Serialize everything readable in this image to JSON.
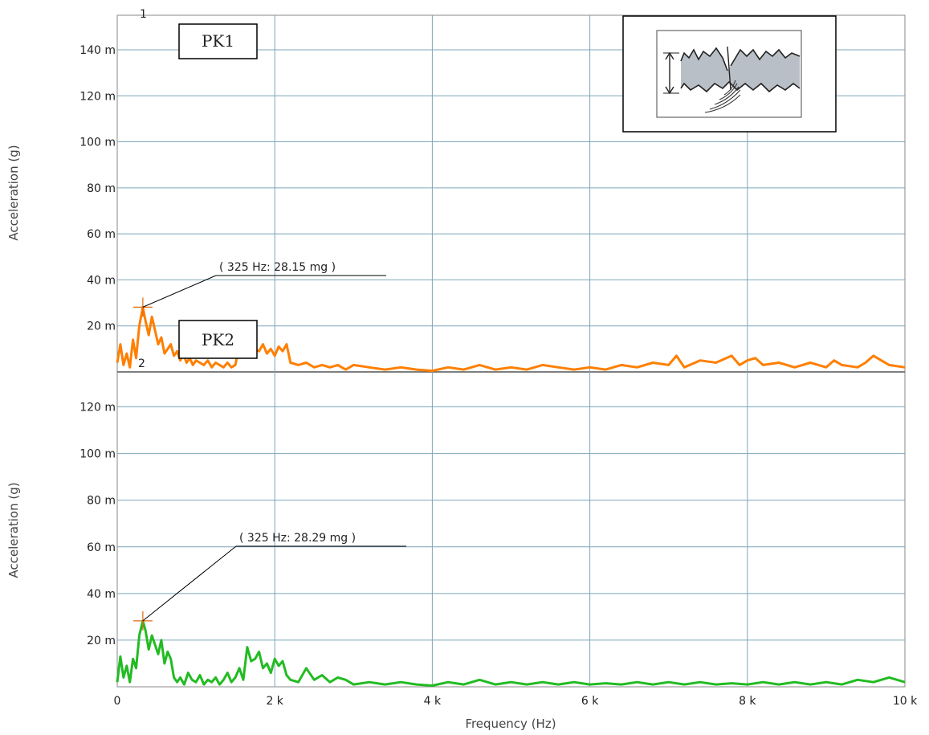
{
  "chart_data": [
    {
      "type": "line",
      "plot_number": "1",
      "box_label": "PK1",
      "ylabel": "Acceleration (g)",
      "xlabel": "",
      "xlim": [
        0,
        10000
      ],
      "ylim": [
        0,
        155
      ],
      "grid": true,
      "y_ticks": [
        20,
        40,
        60,
        80,
        100,
        120,
        140
      ],
      "y_tick_labels": [
        "20 m",
        "40 m",
        "60 m",
        "80 m",
        "100 m",
        "120 m",
        "140 m"
      ],
      "x_ticks": [
        0,
        2000,
        4000,
        6000,
        8000,
        10000
      ],
      "series": [
        {
          "color": "#ff7f00",
          "x": [
            0,
            40,
            80,
            120,
            160,
            200,
            240,
            280,
            325,
            360,
            400,
            440,
            480,
            520,
            560,
            600,
            640,
            680,
            720,
            760,
            800,
            840,
            880,
            920,
            960,
            1000,
            1050,
            1100,
            1150,
            1200,
            1250,
            1300,
            1350,
            1400,
            1450,
            1500,
            1550,
            1600,
            1650,
            1700,
            1750,
            1800,
            1850,
            1900,
            1950,
            2000,
            2050,
            2100,
            2150,
            2200,
            2300,
            2400,
            2500,
            2600,
            2700,
            2800,
            2900,
            3000,
            3200,
            3400,
            3600,
            3800,
            4000,
            4200,
            4400,
            4600,
            4800,
            5000,
            5200,
            5400,
            5600,
            5800,
            6000,
            6200,
            6400,
            6600,
            6800,
            7000,
            7100,
            7200,
            7400,
            7600,
            7800,
            7900,
            8000,
            8100,
            8200,
            8400,
            8600,
            8800,
            9000,
            9100,
            9200,
            9400,
            9500,
            9600,
            9700,
            9800,
            10000
          ],
          "y": [
            4,
            12,
            3,
            8,
            2,
            14,
            6,
            20,
            28.15,
            22,
            16,
            24,
            18,
            12,
            15,
            8,
            10,
            12,
            7,
            9,
            5,
            8,
            4,
            6,
            3,
            5,
            4,
            3,
            5,
            2,
            4,
            3,
            2,
            4,
            2,
            3,
            12,
            8,
            9,
            13,
            10,
            9,
            12,
            8,
            10,
            7,
            11,
            9,
            12,
            4,
            3,
            4,
            2,
            3,
            2,
            3,
            1,
            3,
            2,
            1,
            2,
            1,
            0.5,
            2,
            1,
            3,
            1,
            2,
            1,
            3,
            2,
            1,
            2,
            1,
            3,
            2,
            4,
            3,
            7,
            2,
            5,
            4,
            7,
            3,
            5,
            6,
            3,
            4,
            2,
            4,
            2,
            5,
            3,
            2,
            4,
            7,
            5,
            3,
            2
          ]
        }
      ],
      "annotation": {
        "x": 325,
        "y": 28.15,
        "text": "( 325 Hz:  28.15 mg )"
      }
    },
    {
      "type": "line",
      "plot_number": "2",
      "box_label": "PK2",
      "ylabel": "Acceleration (g)",
      "xlabel": "Frequency (Hz)",
      "xlim": [
        0,
        10000
      ],
      "ylim": [
        0,
        135
      ],
      "grid": true,
      "y_ticks": [
        20,
        40,
        60,
        80,
        100,
        120
      ],
      "y_tick_labels": [
        "20 m",
        "40 m",
        "60 m",
        "80 m",
        "100 m",
        "120 m"
      ],
      "x_ticks": [
        0,
        2000,
        4000,
        6000,
        8000,
        10000
      ],
      "x_tick_labels": [
        "0",
        "2 k",
        "4 k",
        "6 k",
        "8 k",
        "10 k"
      ],
      "series": [
        {
          "color": "#22bb22",
          "x": [
            0,
            40,
            80,
            120,
            160,
            200,
            240,
            280,
            325,
            360,
            400,
            440,
            480,
            520,
            560,
            600,
            640,
            680,
            720,
            760,
            800,
            850,
            900,
            950,
            1000,
            1050,
            1100,
            1150,
            1200,
            1250,
            1300,
            1350,
            1400,
            1450,
            1500,
            1550,
            1600,
            1650,
            1700,
            1750,
            1800,
            1850,
            1900,
            1950,
            2000,
            2050,
            2100,
            2150,
            2200,
            2300,
            2400,
            2500,
            2600,
            2700,
            2800,
            2900,
            3000,
            3200,
            3400,
            3600,
            3800,
            4000,
            4200,
            4400,
            4600,
            4800,
            5000,
            5200,
            5400,
            5600,
            5800,
            6000,
            6200,
            6400,
            6600,
            6800,
            7000,
            7200,
            7400,
            7600,
            7800,
            8000,
            8200,
            8400,
            8600,
            8800,
            9000,
            9200,
            9400,
            9600,
            9800,
            10000
          ],
          "y": [
            2,
            13,
            4,
            9,
            2,
            12,
            8,
            22,
            28.29,
            24,
            16,
            22,
            18,
            14,
            20,
            10,
            15,
            12,
            4,
            2,
            4,
            1,
            6,
            3,
            2,
            5,
            1,
            3,
            2,
            4,
            1,
            3,
            6,
            2,
            4,
            8,
            3,
            17,
            11,
            12,
            15,
            8,
            10,
            6,
            12,
            9,
            11,
            5,
            3,
            2,
            8,
            3,
            5,
            2,
            4,
            3,
            1,
            2,
            1,
            2,
            1,
            0.5,
            2,
            1,
            3,
            1,
            2,
            1,
            2,
            1,
            2,
            1,
            1.5,
            1,
            2,
            1,
            2,
            1,
            2,
            1,
            1.5,
            1,
            2,
            1,
            2,
            1,
            2,
            1,
            3,
            2,
            4,
            2
          ]
        }
      ],
      "annotation": {
        "x": 325,
        "y": 28.29,
        "text": "( 325 Hz:  28.29 mg )"
      }
    }
  ],
  "legend_icon": "amplitude-waveform-icon"
}
